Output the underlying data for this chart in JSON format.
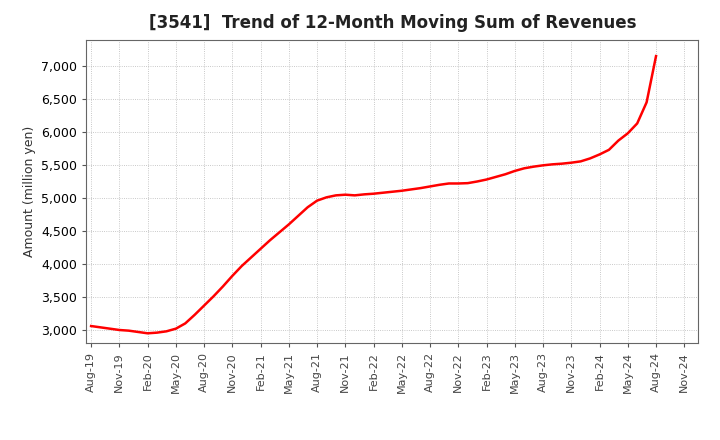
{
  "title": "[3541]  Trend of 12-Month Moving Sum of Revenues",
  "ylabel": "Amount (million yen)",
  "line_color": "#FF0000",
  "line_width": 1.8,
  "background_color": "#FFFFFF",
  "grid_color": "#999999",
  "ylim": [
    2800,
    7400
  ],
  "yticks": [
    3000,
    3500,
    4000,
    4500,
    5000,
    5500,
    6000,
    6500,
    7000
  ],
  "values": [
    3060,
    3040,
    3020,
    3000,
    2990,
    2970,
    2950,
    2960,
    2980,
    3020,
    3100,
    3230,
    3370,
    3510,
    3660,
    3820,
    3970,
    4100,
    4230,
    4360,
    4480,
    4600,
    4730,
    4860,
    4960,
    5010,
    5040,
    5050,
    5040,
    5055,
    5065,
    5080,
    5095,
    5110,
    5130,
    5150,
    5175,
    5200,
    5220,
    5220,
    5225,
    5250,
    5280,
    5320,
    5360,
    5410,
    5450,
    5475,
    5495,
    5510,
    5520,
    5535,
    5555,
    5600,
    5660,
    5730,
    5870,
    5980,
    6130,
    6450,
    7150
  ],
  "xtick_labels": [
    "Aug-19",
    "Nov-19",
    "Feb-20",
    "May-20",
    "Aug-20",
    "Nov-20",
    "Feb-21",
    "May-21",
    "Aug-21",
    "Nov-21",
    "Feb-22",
    "May-22",
    "Aug-22",
    "Nov-22",
    "Feb-23",
    "May-23",
    "Aug-23",
    "Nov-23",
    "Feb-24",
    "May-24",
    "Aug-24",
    "Nov-24"
  ],
  "xtick_positions": [
    0,
    3,
    6,
    9,
    12,
    15,
    18,
    21,
    24,
    27,
    30,
    33,
    36,
    39,
    42,
    45,
    48,
    51,
    54,
    57,
    60,
    63
  ]
}
